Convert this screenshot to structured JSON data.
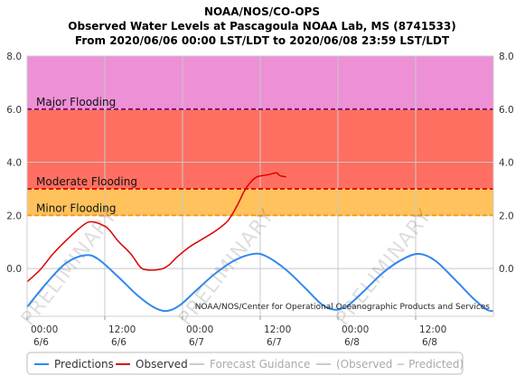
{
  "chart_data": {
    "type": "line",
    "title": [
      "NOAA/NOS/CO-OPS",
      "Observed Water Levels at Pascagoula NOAA Lab, MS (8741533)",
      "From 2020/06/06 00:00 LST/LDT to 2020/06/08 23:59 LST/LDT"
    ],
    "xlim": [
      0,
      72
    ],
    "ylim": [
      -1.8,
      8.0
    ],
    "y_ticks": [
      8.0,
      6.0,
      4.0,
      2.0,
      0.0
    ],
    "y_tick_labels": [
      "8.0",
      "6.0",
      "4.0",
      "2.0",
      "0.0"
    ],
    "x_ticks": [
      {
        "hour": 0,
        "time": "00:00",
        "date": "6/6"
      },
      {
        "hour": 12,
        "time": "12:00",
        "date": "6/6"
      },
      {
        "hour": 24,
        "time": "00:00",
        "date": "6/7"
      },
      {
        "hour": 36,
        "time": "12:00",
        "date": "6/7"
      },
      {
        "hour": 48,
        "time": "00:00",
        "date": "6/8"
      },
      {
        "hour": 60,
        "time": "12:00",
        "date": "6/8"
      }
    ],
    "grid": true,
    "bands": [
      {
        "name": "Major Flooding",
        "from": 6.0,
        "to": 8.0,
        "color": "#ee90d6",
        "line_color": "#7a007a"
      },
      {
        "name": "Moderate Flooding",
        "from": 3.0,
        "to": 6.0,
        "color": "#ff6f61",
        "line_color": "#dd0000"
      },
      {
        "name": "Minor Flooding",
        "from": 2.0,
        "to": 3.0,
        "color": "#ffc25c",
        "line_color": "#ff9900"
      }
    ],
    "series": [
      {
        "name": "Predictions",
        "color": "#3388ee",
        "points": [
          [
            0,
            -1.45
          ],
          [
            3,
            -0.55
          ],
          [
            6,
            0.2
          ],
          [
            9,
            0.5
          ],
          [
            11,
            0.35
          ],
          [
            14,
            -0.3
          ],
          [
            17,
            -1.0
          ],
          [
            19.5,
            -1.45
          ],
          [
            21.5,
            -1.6
          ],
          [
            23.5,
            -1.4
          ],
          [
            26,
            -0.85
          ],
          [
            29,
            -0.2
          ],
          [
            32,
            0.3
          ],
          [
            35,
            0.55
          ],
          [
            37,
            0.45
          ],
          [
            40,
            -0.05
          ],
          [
            43,
            -0.75
          ],
          [
            45.5,
            -1.35
          ],
          [
            47.5,
            -1.55
          ],
          [
            49.5,
            -1.4
          ],
          [
            52,
            -0.85
          ],
          [
            55,
            -0.15
          ],
          [
            58,
            0.35
          ],
          [
            60.5,
            0.55
          ],
          [
            63,
            0.3
          ],
          [
            66,
            -0.4
          ],
          [
            69,
            -1.15
          ],
          [
            71,
            -1.55
          ],
          [
            72,
            -1.6
          ]
        ]
      },
      {
        "name": "Observed",
        "color": "#dd0000",
        "points": [
          [
            0,
            -0.5
          ],
          [
            2,
            -0.05
          ],
          [
            4,
            0.55
          ],
          [
            6,
            1.05
          ],
          [
            8,
            1.5
          ],
          [
            9.5,
            1.75
          ],
          [
            11,
            1.7
          ],
          [
            12.5,
            1.5
          ],
          [
            14,
            1.05
          ],
          [
            16,
            0.55
          ],
          [
            17.5,
            0.05
          ],
          [
            18.5,
            -0.05
          ],
          [
            20,
            -0.05
          ],
          [
            21,
            0.0
          ],
          [
            22,
            0.15
          ],
          [
            23,
            0.4
          ],
          [
            25,
            0.8
          ],
          [
            27,
            1.1
          ],
          [
            29,
            1.4
          ],
          [
            31,
            1.8
          ],
          [
            32.5,
            2.4
          ],
          [
            33.5,
            2.9
          ],
          [
            34.5,
            3.25
          ],
          [
            35.5,
            3.45
          ],
          [
            36.5,
            3.5
          ],
          [
            37.5,
            3.55
          ],
          [
            38.5,
            3.6
          ],
          [
            39,
            3.5
          ],
          [
            40,
            3.45
          ]
        ]
      }
    ],
    "legend": {
      "placement": "bottom",
      "items": [
        {
          "label": "Predictions",
          "color": "#3388ee",
          "active": true
        },
        {
          "label": "Observed",
          "color": "#dd0000",
          "active": true
        },
        {
          "label": "Forecast Guidance",
          "color": "#cccccc",
          "active": false
        },
        {
          "label": "(Observed − Predicted)",
          "color": "#cccccc",
          "active": false
        }
      ]
    },
    "credit": "NOAA/NOS/Center for Operational Oceanographic Products and Services",
    "watermark": "PRELIMINARY"
  }
}
